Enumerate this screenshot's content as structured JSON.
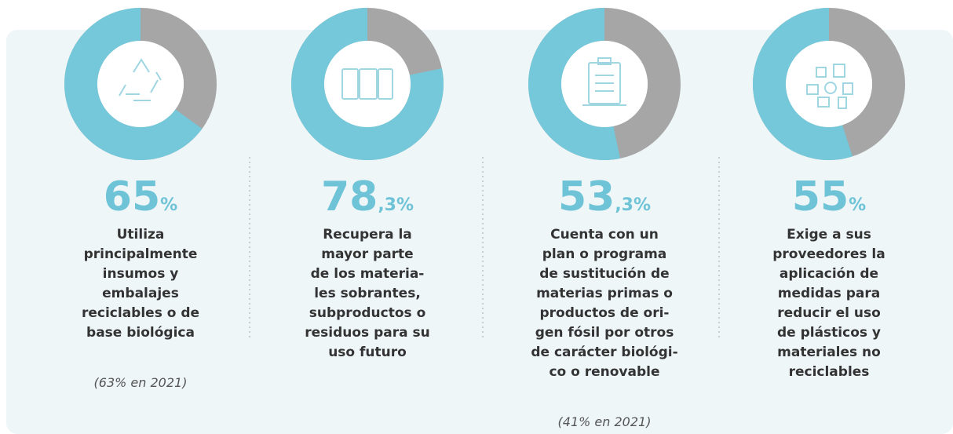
{
  "chart_data": [
    {
      "type": "pie",
      "value": 65,
      "value_label": "65%",
      "color": "#74c8da",
      "description": [
        "Utiliza",
        "principalmente",
        "insumos y",
        "embalajes",
        "reciclables o de",
        "base biológica"
      ],
      "note": "(63% en 2021)"
    },
    {
      "type": "pie",
      "value": 78.3,
      "value_label": "78,3%",
      "color": "#74c8da",
      "description": [
        "Recupera la",
        "mayor parte",
        "de los materia-",
        "les sobrantes,",
        "subproductos o",
        "residuos para su",
        "uso futuro"
      ]
    },
    {
      "type": "pie",
      "value": 53.3,
      "value_label": "53,3%",
      "color": "#74c8da",
      "description": [
        "Cuenta con un",
        "plan o programa",
        "de sustitución de",
        "materias primas o",
        "productos de ori-",
        "gen fósil por otros",
        "de carácter biológi-",
        "co o renovable"
      ],
      "note": "(41% en 2021)"
    },
    {
      "type": "pie",
      "value": 55,
      "value_label": "55%",
      "color": "#74c8da",
      "description": [
        "Exige a sus",
        "proveedores la",
        "aplicación de",
        "medidas para",
        "reducir el uso",
        "de plásticos y",
        "materiales no",
        "reciclables"
      ]
    }
  ]
}
